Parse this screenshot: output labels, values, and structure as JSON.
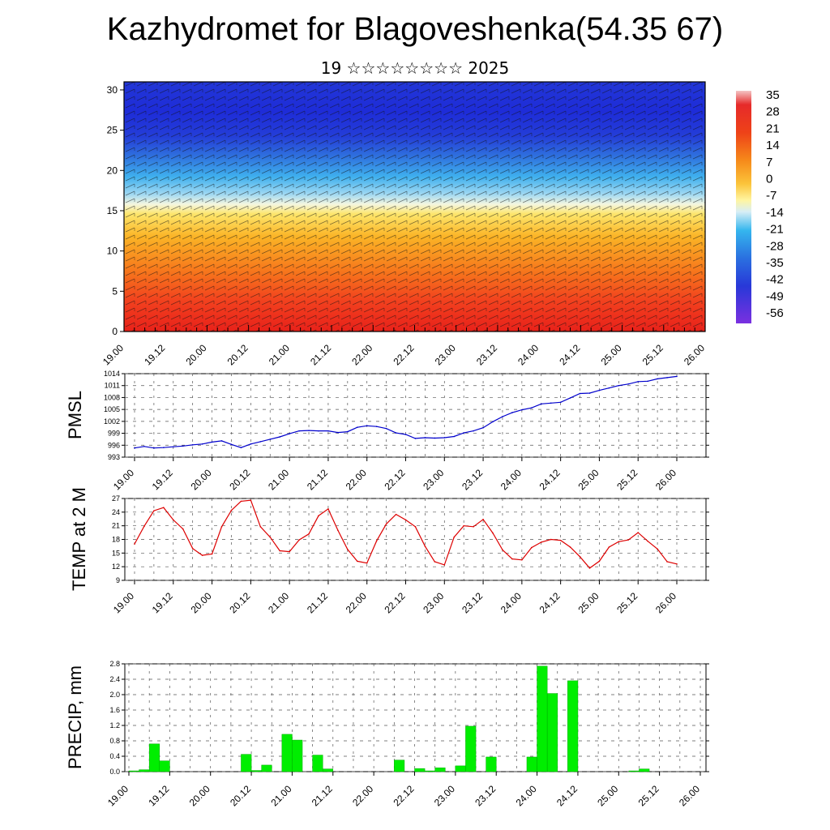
{
  "header": {
    "title": "Kazhydromet for Blagoveshenka(54.35 67)",
    "subtitle": "19 ☆☆☆☆☆☆☆☆ 2025"
  },
  "colors": {
    "pmsl_line": "#0000cc",
    "temp_line": "#dd0000",
    "precip_bar": "#00ee00",
    "precip_bar_edge": "#00aa00",
    "grid": "#555555"
  },
  "chart_data": [
    {
      "id": "cross_section",
      "type": "heatmap",
      "title": "",
      "ylim": [
        0,
        31
      ],
      "yticks": [
        0,
        5,
        10,
        15,
        20,
        25,
        30
      ],
      "xlim": [
        0,
        168
      ],
      "xtick_labels": [
        "19.00",
        "19.12",
        "20.00",
        "20.12",
        "21.00",
        "21.12",
        "22.00",
        "22.12",
        "23.00",
        "23.12",
        "24.00",
        "24.12",
        "25.00",
        "25.12",
        "26.00"
      ],
      "colorbar": {
        "labels": [
          "35",
          "28",
          "21",
          "14",
          "7",
          "0",
          "-7",
          "-14",
          "-21",
          "-28",
          "-35",
          "-42",
          "-49",
          "-56"
        ]
      }
    },
    {
      "id": "pmsl",
      "type": "line",
      "ylabel": "PMSL",
      "ylim": [
        993,
        1014
      ],
      "ytick_labels": [
        "1014",
        "1011",
        "1008",
        "1005",
        "1002",
        "999",
        "996",
        "993"
      ],
      "yticks": [
        1014,
        1011,
        1008,
        1005,
        1002,
        999,
        996,
        993
      ],
      "xtick_labels": [
        "19.00",
        "19.12",
        "20.00",
        "20.12",
        "21.00",
        "21.12",
        "22.00",
        "22.12",
        "23.00",
        "23.12",
        "24.00",
        "24.12",
        "25.00",
        "25.12",
        "26.00"
      ],
      "xlim": [
        0,
        168
      ],
      "x": [
        0,
        3,
        6,
        9,
        12,
        15,
        18,
        21,
        24,
        27,
        30,
        33,
        36,
        39,
        42,
        45,
        48,
        51,
        54,
        57,
        60,
        63,
        66,
        69,
        72,
        75,
        78,
        81,
        84,
        87,
        90,
        93,
        96,
        99,
        102,
        105,
        108,
        111,
        114,
        117,
        120,
        123,
        126,
        129,
        132,
        135,
        138,
        141,
        144,
        147,
        150,
        153,
        156,
        159,
        162,
        165,
        168
      ],
      "values": [
        995.3,
        995.7,
        995.3,
        995.4,
        995.6,
        995.8,
        996.1,
        996.3,
        996.8,
        997.1,
        996.2,
        995.4,
        996.3,
        996.9,
        997.5,
        998.1,
        998.9,
        999.6,
        999.7,
        999.6,
        999.6,
        999.2,
        999.4,
        1000.5,
        1000.9,
        1000.7,
        1000.2,
        999.1,
        998.7,
        997.7,
        997.9,
        997.8,
        997.9,
        998.2,
        999.1,
        999.6,
        1000.4,
        1001.9,
        1003.2,
        1004.2,
        1004.9,
        1005.4,
        1006.4,
        1006.6,
        1006.8,
        1007.9,
        1009.0,
        1009.1,
        1009.8,
        1010.4,
        1011.0,
        1011.4,
        1012.0,
        1012.1,
        1012.7,
        1013.0,
        1013.3
      ]
    },
    {
      "id": "temp2m",
      "type": "line",
      "ylabel": "TEMP at 2 M",
      "ylim": [
        9,
        27
      ],
      "ytick_labels": [
        "27",
        "24",
        "21",
        "18",
        "15",
        "12",
        "9"
      ],
      "yticks": [
        27,
        24,
        21,
        18,
        15,
        12,
        9
      ],
      "xtick_labels": [
        "19.00",
        "19.12",
        "20.00",
        "20.12",
        "21.00",
        "21.12",
        "22.00",
        "22.12",
        "23.00",
        "23.12",
        "24.00",
        "24.12",
        "25.00",
        "25.12",
        "26.00"
      ],
      "xlim": [
        0,
        168
      ],
      "x": [
        0,
        3,
        6,
        9,
        12,
        15,
        18,
        21,
        24,
        27,
        30,
        33,
        36,
        39,
        42,
        45,
        48,
        51,
        54,
        57,
        60,
        63,
        66,
        69,
        72,
        75,
        78,
        81,
        84,
        87,
        90,
        93,
        96,
        99,
        102,
        105,
        108,
        111,
        114,
        117,
        120,
        123,
        126,
        129,
        132,
        135,
        138,
        141,
        144,
        147,
        150,
        153,
        156,
        159,
        162,
        165,
        168
      ],
      "values": [
        17.0,
        20.9,
        24.3,
        25.0,
        22.3,
        20.3,
        16.0,
        14.5,
        14.8,
        20.8,
        24.4,
        26.4,
        26.6,
        20.8,
        18.5,
        15.5,
        15.3,
        17.9,
        19.2,
        23.2,
        24.7,
        20.0,
        15.8,
        13.2,
        12.8,
        17.7,
        21.4,
        23.5,
        22.3,
        20.8,
        16.5,
        13.1,
        12.4,
        18.5,
        21.0,
        20.8,
        22.4,
        19.4,
        15.7,
        13.7,
        13.5,
        16.2,
        17.4,
        18.0,
        17.8,
        16.3,
        14.2,
        11.7,
        13.2,
        16.3,
        17.5,
        17.9,
        19.5,
        17.6,
        15.9,
        13.1,
        12.6
      ]
    },
    {
      "id": "precip",
      "type": "bar",
      "ylabel": "PRECIP, mm",
      "ylim": [
        0,
        2.8
      ],
      "ytick_labels": [
        "2.8",
        "2.4",
        "2.0",
        "1.6",
        "1.2",
        "0.8",
        "0.4",
        "0.0"
      ],
      "yticks": [
        2.8,
        2.4,
        2.0,
        1.6,
        1.2,
        0.8,
        0.4,
        0.0
      ],
      "xtick_labels": [
        "19.00",
        "19.12",
        "20.00",
        "20.12",
        "21.00",
        "21.12",
        "22.00",
        "22.12",
        "23.00",
        "23.12",
        "24.00",
        "24.12",
        "25.00",
        "25.12",
        "26.00"
      ],
      "xlim": [
        0,
        168
      ],
      "x": [
        3,
        6,
        9,
        12,
        15,
        18,
        21,
        24,
        27,
        30,
        33,
        36,
        39,
        42,
        45,
        48,
        51,
        54,
        57,
        60,
        63,
        66,
        69,
        72,
        75,
        78,
        81,
        84,
        87,
        90,
        93,
        96,
        99,
        102,
        105,
        108,
        111,
        114,
        117,
        120,
        123,
        126,
        129,
        132,
        135,
        138,
        141,
        144,
        147,
        150,
        153,
        156,
        159,
        162,
        165,
        168
      ],
      "values": [
        0.02,
        0.05,
        0.72,
        0.28,
        0,
        0,
        0,
        0,
        0,
        0,
        0,
        0.45,
        0.03,
        0.17,
        0,
        0.97,
        0.82,
        0,
        0.43,
        0.07,
        0,
        0,
        0,
        0,
        0,
        0,
        0.3,
        0,
        0.08,
        0.02,
        0.1,
        0,
        0.15,
        1.18,
        0,
        0.38,
        0,
        0,
        0,
        0.38,
        2.74,
        2.03,
        0,
        2.36,
        0,
        0,
        0,
        0,
        0,
        0.02,
        0.07,
        0,
        0,
        0,
        0,
        0
      ]
    }
  ]
}
